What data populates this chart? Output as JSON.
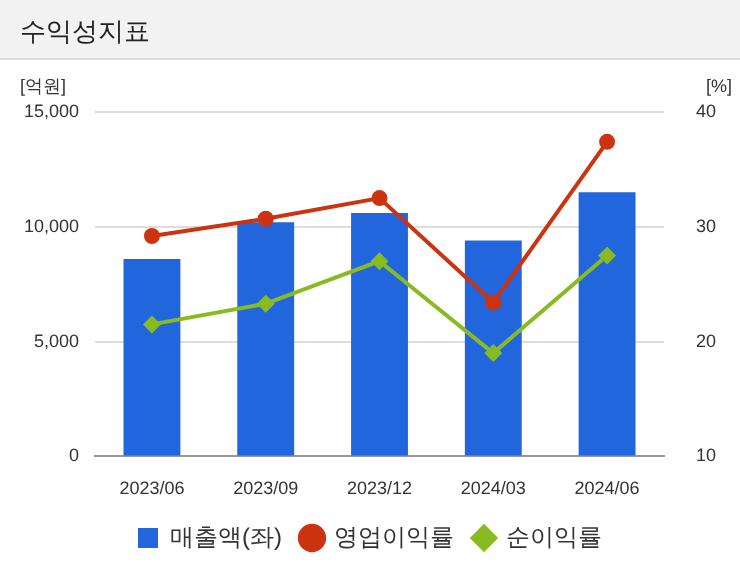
{
  "chart_data": {
    "type": "bar",
    "title": "수익성지표",
    "ylabel": "[억원]",
    "y2label": "[%]",
    "categories": [
      "2023/06",
      "2023/09",
      "2023/12",
      "2024/03",
      "2024/06"
    ],
    "series": [
      {
        "name": "매출액(좌)",
        "color": "#2266dd",
        "values": [
          8600,
          10200,
          10600,
          9400,
          11500
        ]
      },
      {
        "name": "영업이익률",
        "type": "line",
        "axis": "y2",
        "color": "#cc3311",
        "marker": "circle",
        "values": [
          29.2,
          30.7,
          32.5,
          23.4,
          37.4
        ]
      },
      {
        "name": "순이익률",
        "type": "line",
        "axis": "y2",
        "color": "#88bb22",
        "marker": "diamond",
        "values": [
          21.5,
          23.3,
          27.0,
          19.0,
          27.5
        ]
      }
    ],
    "ylim": [
      0,
      15000
    ],
    "yticks": [
      0,
      {
        "value": 5000,
        "label": "5,000"
      },
      {
        "value": 10000,
        "label": "10,000"
      },
      {
        "value": 15000,
        "label": "15,000"
      }
    ],
    "y2lim": [
      10,
      40
    ],
    "y2ticks": [
      10,
      20,
      30,
      40
    ],
    "grid": "y",
    "legend": "bottom"
  }
}
